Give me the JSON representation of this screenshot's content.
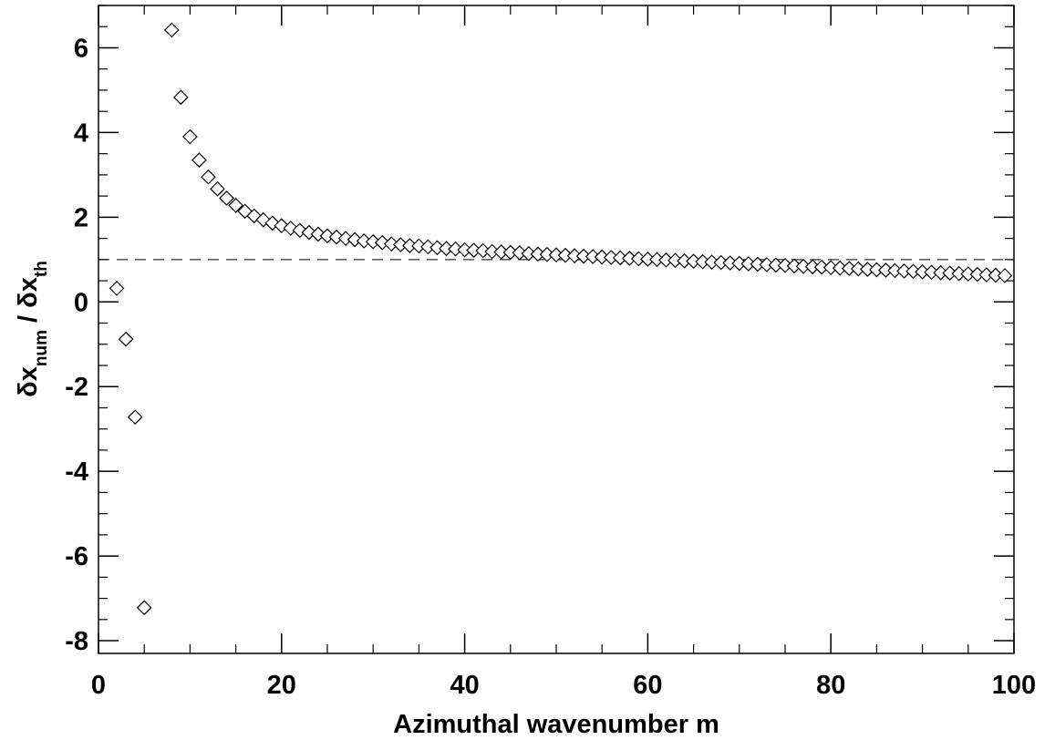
{
  "chart_data": {
    "type": "scatter",
    "title": "",
    "xlabel": "Azimuthal wavenumber m",
    "ylabel_parts": [
      {
        "text": "δx",
        "sub": false
      },
      {
        "text": "num",
        "sub": true
      },
      {
        "text": " / δx",
        "sub": false
      },
      {
        "text": "th",
        "sub": true
      }
    ],
    "xlim": [
      0,
      100
    ],
    "ylim": [
      -8.3,
      7.0
    ],
    "x_ticks": [
      0,
      20,
      40,
      60,
      80,
      100
    ],
    "x_tick_labels": [
      "0",
      "20",
      "40",
      "60",
      "80",
      "100"
    ],
    "x_minor_step": 5,
    "y_ticks": [
      -8,
      -6,
      -4,
      -2,
      0,
      2,
      4,
      6
    ],
    "y_tick_labels": [
      "-8",
      "-6",
      "-4",
      "-2",
      "0",
      "2",
      "4",
      "6"
    ],
    "y_minor_step": 0.5,
    "grid": false,
    "marker": "diamond-open",
    "reference_line": {
      "y": 1.0,
      "style": "dashed"
    },
    "series": [
      {
        "x": [
          2,
          3,
          4,
          5,
          8,
          9,
          10,
          11,
          12,
          13,
          14,
          15,
          16,
          17,
          18,
          19,
          20,
          21,
          22,
          23,
          24,
          25,
          26,
          27,
          28,
          29,
          30,
          31,
          32,
          33,
          34,
          35,
          36,
          37,
          38,
          39,
          40,
          41,
          42,
          43,
          44,
          45,
          46,
          47,
          48,
          49,
          50,
          51,
          52,
          53,
          54,
          55,
          56,
          57,
          58,
          59,
          60,
          61,
          62,
          63,
          64,
          65,
          66,
          67,
          68,
          69,
          70,
          71,
          72,
          73,
          74,
          75,
          76,
          77,
          78,
          79,
          80,
          81,
          82,
          83,
          84,
          85,
          86,
          87,
          88,
          89,
          90,
          91,
          92,
          93,
          94,
          95,
          96,
          97,
          98,
          99
        ],
        "y": [
          0.32,
          -0.88,
          -2.72,
          -7.22,
          6.42,
          4.83,
          3.9,
          3.35,
          2.95,
          2.67,
          2.45,
          2.28,
          2.14,
          2.03,
          1.94,
          1.86,
          1.8,
          1.74,
          1.69,
          1.64,
          1.6,
          1.56,
          1.53,
          1.5,
          1.47,
          1.44,
          1.42,
          1.4,
          1.37,
          1.35,
          1.33,
          1.32,
          1.3,
          1.28,
          1.26,
          1.25,
          1.23,
          1.22,
          1.21,
          1.19,
          1.18,
          1.17,
          1.16,
          1.14,
          1.13,
          1.12,
          1.11,
          1.1,
          1.09,
          1.08,
          1.07,
          1.06,
          1.05,
          1.04,
          1.03,
          1.02,
          1.01,
          1.0,
          0.99,
          0.98,
          0.97,
          0.96,
          0.95,
          0.94,
          0.93,
          0.92,
          0.91,
          0.9,
          0.89,
          0.88,
          0.87,
          0.86,
          0.85,
          0.84,
          0.83,
          0.82,
          0.81,
          0.8,
          0.79,
          0.78,
          0.77,
          0.76,
          0.75,
          0.74,
          0.73,
          0.72,
          0.71,
          0.7,
          0.69,
          0.68,
          0.67,
          0.66,
          0.65,
          0.64,
          0.63,
          0.62
        ]
      }
    ]
  }
}
